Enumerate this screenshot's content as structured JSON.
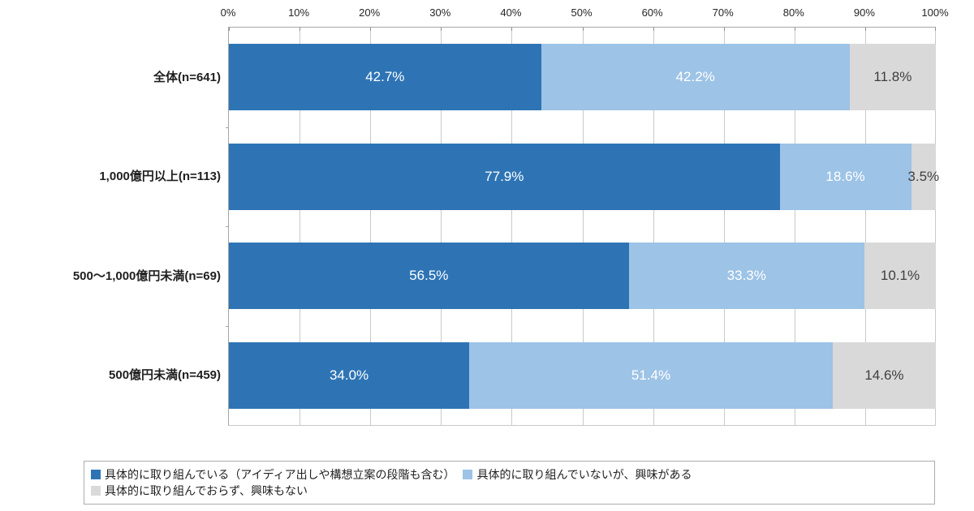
{
  "page": {
    "background": "#FFFFFF"
  },
  "chart_data": {
    "type": "bar",
    "variant": "horizontal-stacked-100",
    "title": "",
    "categories": [
      "全体(n=641)",
      "1,000億円以上(n=113)",
      "500〜1,000億円未満(n=69)",
      "500億円未満(n=459)"
    ],
    "series": [
      {
        "name": "具体的に取り組んでいる（アイディア出しや構想立案の段階も含む）",
        "color": "#2E74B5",
        "label_color": "#FFFFFF",
        "values": [
          42.7,
          77.9,
          56.5,
          34.0
        ]
      },
      {
        "name": "具体的に取り組んでいないが、興味がある",
        "color": "#9DC3E6",
        "label_color": "#FFFFFF",
        "values": [
          42.2,
          18.6,
          33.3,
          51.4
        ]
      },
      {
        "name": "具体的に取り組んでおらず、興味もない",
        "color": "#D9D9D9",
        "label_color": "#3F3F3F",
        "values": [
          11.8,
          3.5,
          10.1,
          14.6
        ]
      }
    ],
    "value_label_suffix": "%",
    "x_ticks": [
      "0%",
      "10%",
      "20%",
      "30%",
      "40%",
      "50%",
      "60%",
      "70%",
      "80%",
      "90%",
      "100%"
    ],
    "xlim": [
      0,
      100
    ],
    "grid": true,
    "legend_position": "bottom-box",
    "legend_rows": [
      [
        0,
        1
      ],
      [
        2
      ]
    ]
  }
}
